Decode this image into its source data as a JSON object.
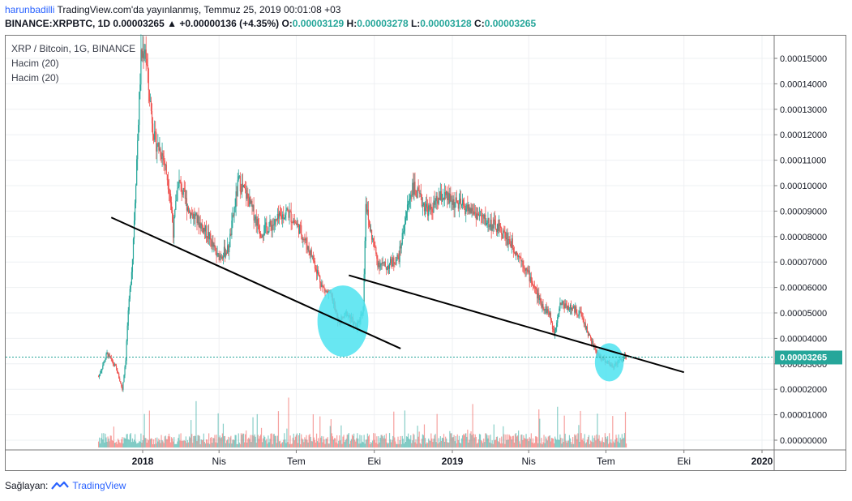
{
  "header": {
    "author": "harunbadilli",
    "published": " TradingView.com'da yayınlanmış, Temmuz 25, 2019 00:01:08 +03",
    "symbol": "BINANCE:XRPBTC, 1D",
    "last": "0.00003265",
    "change_arrow": "▲",
    "change": "+0.00000136 (+4.35%)",
    "o_label": "O:",
    "o": "0.00003129",
    "h_label": "H:",
    "h": "0.00003278",
    "l_label": "L:",
    "l": "0.00003128",
    "c_label": "C:",
    "c": "0.00003265"
  },
  "legend": {
    "title": "XRP / Bitcoin, 1G, BINANCE",
    "vol1": "Hacim (20)",
    "vol2": "Hacim (20)"
  },
  "footer": {
    "prefix": "Sağlayan:",
    "brand": "TradingView",
    "icon": "tradingview-logo-icon"
  },
  "colors": {
    "up": "#26a69a",
    "down": "#ef5350",
    "line": "#000000",
    "highlight": "#4de3f0",
    "tag": "#26a69a"
  },
  "chart_data": {
    "type": "candlestick",
    "title": "XRP / Bitcoin, 1G, BINANCE",
    "x_ticks": [
      "2018",
      "Nis",
      "Tem",
      "Eki",
      "2019",
      "Nis",
      "Tem",
      "Eki",
      "2020"
    ],
    "x_tick_dates": [
      "2018-01-01",
      "2018-04-01",
      "2018-07-01",
      "2018-10-01",
      "2019-01-01",
      "2019-04-01",
      "2019-07-01",
      "2019-10-01",
      "2020-01-01"
    ],
    "y_ticks": [
      "0.00015000",
      "0.00014000",
      "0.00013000",
      "0.00012000",
      "0.00011000",
      "0.00010000",
      "0.00009000",
      "0.00008000",
      "0.00007000",
      "0.00006000",
      "0.00005000",
      "0.00004000",
      "0.00003000",
      "0.00002000",
      "0.00001000",
      "0.00000000"
    ],
    "ylim": [
      0,
      0.00016
    ],
    "current_price": "0.00003265",
    "grid": true,
    "price_path": [
      [
        "2017-11-10",
        2.5e-05
      ],
      [
        "2017-11-20",
        3.4e-05
      ],
      [
        "2017-12-01",
        2.8e-05
      ],
      [
        "2017-12-08",
        2e-05
      ],
      [
        "2017-12-12",
        3.2e-05
      ],
      [
        "2017-12-14",
        4.5e-05
      ],
      [
        "2017-12-20",
        7.2e-05
      ],
      [
        "2017-12-26",
        0.000118
      ],
      [
        "2017-12-30",
        0.00015
      ],
      [
        "2018-01-04",
        0.000155
      ],
      [
        "2018-01-08",
        0.000138
      ],
      [
        "2018-01-15",
        0.000118
      ],
      [
        "2018-01-25",
        0.000112
      ],
      [
        "2018-02-02",
        9.8e-05
      ],
      [
        "2018-02-06",
        8.2e-05
      ],
      [
        "2018-02-12",
        0.000102
      ],
      [
        "2018-02-25",
        9e-05
      ],
      [
        "2018-03-10",
        8.5e-05
      ],
      [
        "2018-03-20",
        8e-05
      ],
      [
        "2018-03-30",
        7.2e-05
      ],
      [
        "2018-04-12",
        7.5e-05
      ],
      [
        "2018-04-24",
        0.000102
      ],
      [
        "2018-05-05",
        9.5e-05
      ],
      [
        "2018-05-20",
        8.2e-05
      ],
      [
        "2018-06-05",
        8.5e-05
      ],
      [
        "2018-06-20",
        9e-05
      ],
      [
        "2018-07-05",
        8.3e-05
      ],
      [
        "2018-07-20",
        7.2e-05
      ],
      [
        "2018-08-01",
        6e-05
      ],
      [
        "2018-08-12",
        5.6e-05
      ],
      [
        "2018-08-20",
        4.6e-05
      ],
      [
        "2018-08-30",
        5e-05
      ],
      [
        "2018-09-10",
        4.4e-05
      ],
      [
        "2018-09-18",
        5.2e-05
      ],
      [
        "2018-09-21",
        9.4e-05
      ],
      [
        "2018-09-24",
        8.6e-05
      ],
      [
        "2018-10-05",
        7e-05
      ],
      [
        "2018-10-15",
        6.8e-05
      ],
      [
        "2018-10-30",
        7.2e-05
      ],
      [
        "2018-11-07",
        8.8e-05
      ],
      [
        "2018-11-15",
        0.0001
      ],
      [
        "2018-11-25",
        9.4e-05
      ],
      [
        "2018-12-05",
        9e-05
      ],
      [
        "2018-12-20",
        9.6e-05
      ],
      [
        "2019-01-05",
        9.3e-05
      ],
      [
        "2019-01-25",
        9e-05
      ],
      [
        "2019-02-10",
        8.6e-05
      ],
      [
        "2019-02-25",
        8.3e-05
      ],
      [
        "2019-03-10",
        7.8e-05
      ],
      [
        "2019-03-25",
        7e-05
      ],
      [
        "2019-04-05",
        6.2e-05
      ],
      [
        "2019-04-15",
        5.4e-05
      ],
      [
        "2019-04-25",
        5e-05
      ],
      [
        "2019-05-01",
        4.2e-05
      ],
      [
        "2019-05-08",
        5.4e-05
      ],
      [
        "2019-05-20",
        5.2e-05
      ],
      [
        "2019-06-01",
        5e-05
      ],
      [
        "2019-06-10",
        4.2e-05
      ],
      [
        "2019-06-20",
        3.4e-05
      ],
      [
        "2019-06-28",
        3.2e-05
      ],
      [
        "2019-07-08",
        2.9e-05
      ],
      [
        "2019-07-16",
        3.1e-05
      ],
      [
        "2019-07-25",
        3.3e-05
      ]
    ],
    "trendlines": [
      {
        "from": [
          "2017-11-25",
          8.75e-05
        ],
        "to": [
          "2018-11-01",
          3.6e-05
        ]
      },
      {
        "from": [
          "2018-09-01",
          6.48e-05
        ],
        "to": [
          "2019-10-01",
          2.67e-05
        ]
      }
    ],
    "highlights": [
      {
        "center": [
          "2018-08-25",
          4.68e-05
        ],
        "rx_days": 30,
        "ry": 1.4e-05
      },
      {
        "center": [
          "2019-07-05",
          3.06e-05
        ],
        "rx_days": 17,
        "ry": 7.5e-06
      }
    ]
  }
}
